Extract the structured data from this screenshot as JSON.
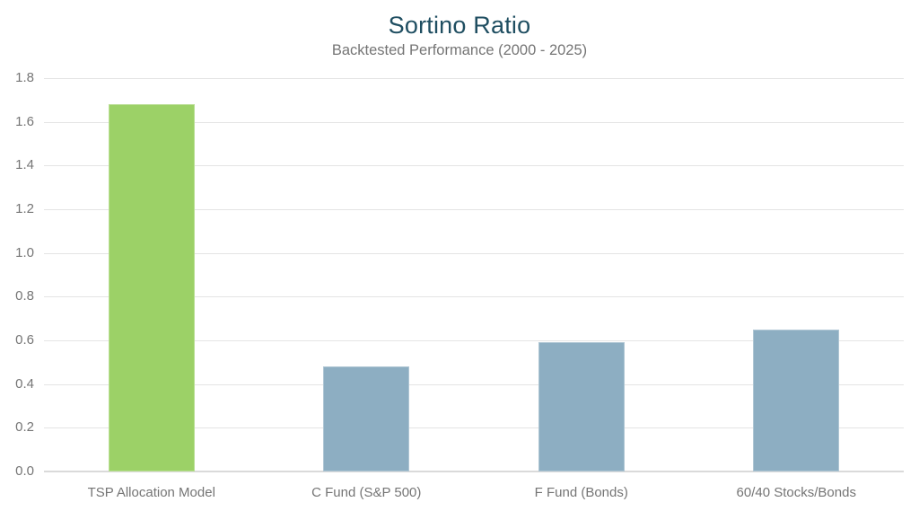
{
  "chart_data": {
    "type": "bar",
    "title": "Sortino Ratio",
    "subtitle": "Backtested Performance (2000 - 2025)",
    "categories": [
      "TSP Allocation Model",
      "C Fund (S&P 500)",
      "F Fund (Bonds)",
      "60/40 Stocks/Bonds"
    ],
    "values": [
      1.68,
      0.48,
      0.59,
      0.65
    ],
    "bar_colors": [
      "#9cd167",
      "#8daec2",
      "#8daec2",
      "#8daec2"
    ],
    "highlight_color": "#9cd167",
    "default_color": "#8daec2",
    "xlabel": "",
    "ylabel": "",
    "ylim": [
      0.0,
      1.8
    ],
    "yticks": [
      "0.0",
      "0.2",
      "0.4",
      "0.6",
      "0.8",
      "1.0",
      "1.2",
      "1.4",
      "1.6",
      "1.8"
    ],
    "grid": "horizontal",
    "legend": "none",
    "title_color": "#1f4e61",
    "subtitle_color": "#757575",
    "axis_label_color": "#757575",
    "gridline_color": "#e4e4e4",
    "background_color": "#ffffff"
  }
}
